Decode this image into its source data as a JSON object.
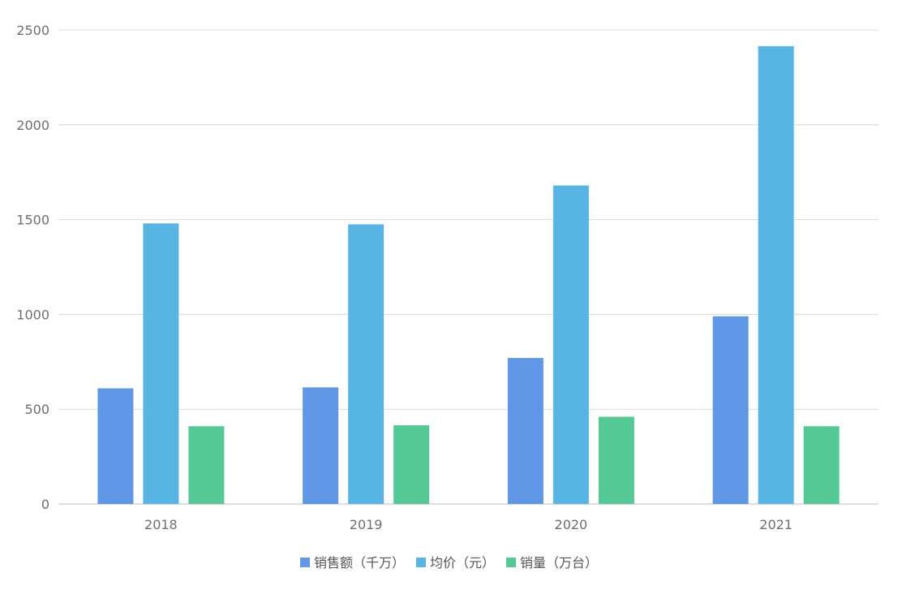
{
  "chart_data": {
    "type": "bar",
    "categories": [
      "2018",
      "2019",
      "2020",
      "2021"
    ],
    "series": [
      {
        "name": "销售额（千万）",
        "values": [
          610,
          615,
          770,
          990
        ],
        "color": "#6096e6"
      },
      {
        "name": "均价（元）",
        "values": [
          1480,
          1475,
          1680,
          2415
        ],
        "color": "#58b5e3"
      },
      {
        "name": "销量（万台）",
        "values": [
          410,
          415,
          460,
          410
        ],
        "color": "#55c995"
      }
    ],
    "y_ticks": [
      "0",
      "500",
      "1000",
      "1500",
      "2000",
      "2500"
    ],
    "ylim": [
      0,
      2500
    ],
    "grid": true,
    "legend_position": "bottom"
  }
}
